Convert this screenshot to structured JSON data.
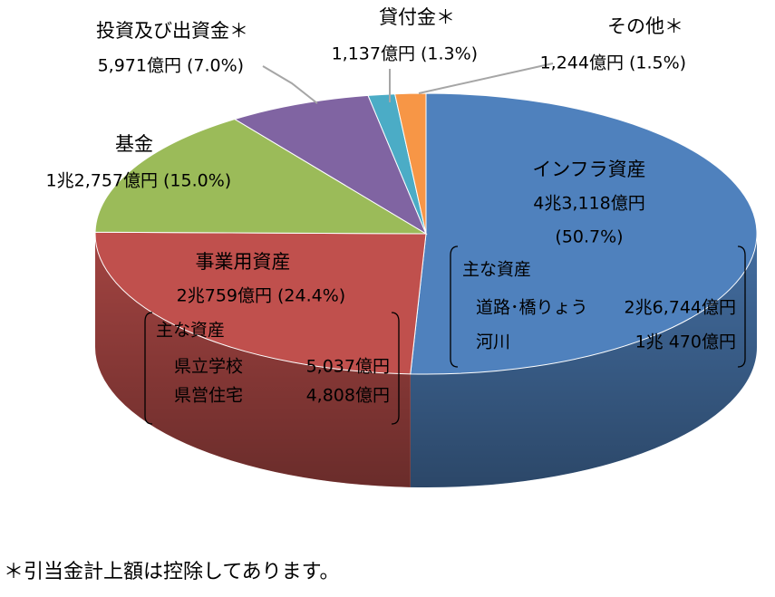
{
  "chart_data": {
    "type": "pie",
    "categories": [
      "インフラ資産",
      "事業用資産",
      "基金",
      "投資及び出資金＊",
      "貸付金＊",
      "その他＊"
    ],
    "values": [
      50.7,
      24.4,
      15.0,
      7.0,
      1.3,
      1.5
    ],
    "value_labels": [
      "(50.7%)",
      "(24.4%)",
      "(15.0%)",
      "(7.0%)",
      "(1.3%)",
      "(1.5%)"
    ],
    "amounts": [
      "4兆3,118億円",
      "2兆759億円",
      "1兆2,757億円",
      "5,971億円",
      "1,137億円",
      "1,244億円"
    ],
    "colors": [
      "#4f81bd",
      "#c0504d",
      "#9bbb59",
      "#8064a2",
      "#4bacc6",
      "#f79646"
    ],
    "notes": [
      {
        "title": "主な資産",
        "items": [
          {
            "name": "道路･橋りょう",
            "amount": "2兆6,744億円"
          },
          {
            "name": "河川",
            "amount": "1兆 470億円"
          }
        ]
      },
      {
        "title": "主な資産",
        "items": [
          {
            "name": "県立学校",
            "amount": "5,037億円"
          },
          {
            "name": "県営住宅",
            "amount": "4,808億円"
          }
        ]
      }
    ]
  },
  "footnote": "＊引当金計上額は控除してあります。"
}
